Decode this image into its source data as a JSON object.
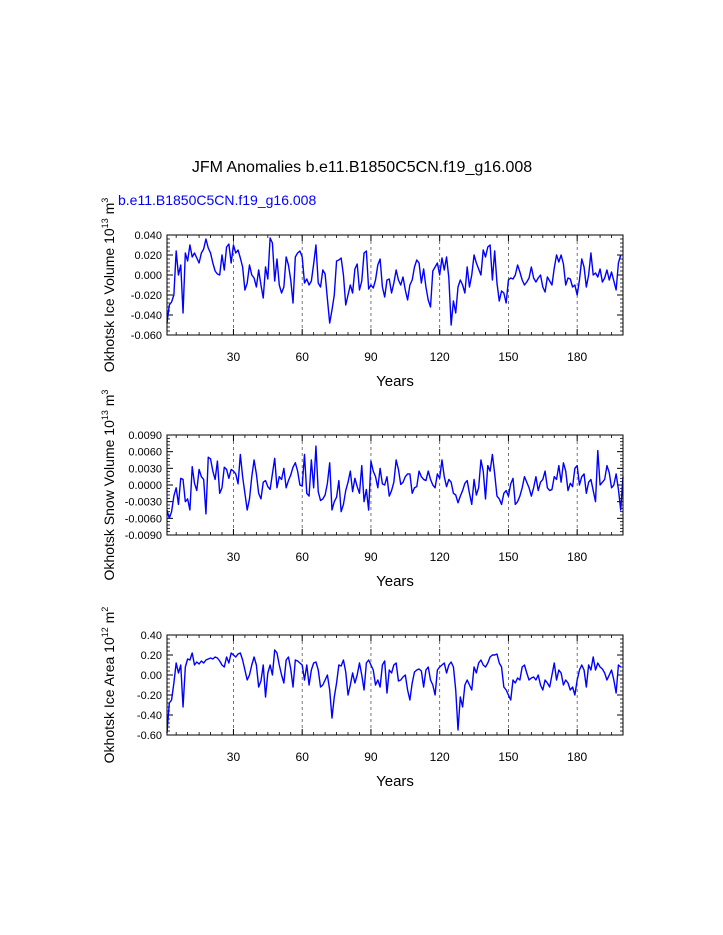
{
  "figure": {
    "title": "JFM Anomalies b.e11.B1850C5CN.f19_g16.008",
    "case_label": "b.e11.B1850C5CN.f19_g16.008",
    "case_color": "#0000ff",
    "line_color": "#0000ff"
  },
  "chart_data": [
    {
      "type": "line",
      "ylabel_main": "Okhotsk Ice Volume 10",
      "ylabel_sup1": "13",
      "ylabel_unit": " m",
      "ylabel_sup2": "3",
      "xlabel": "Years",
      "xlim": [
        1,
        200
      ],
      "ylim": [
        -0.06,
        0.04
      ],
      "yticks": [
        -0.06,
        -0.04,
        -0.02,
        0.0,
        0.02,
        0.04
      ],
      "ytick_labels": [
        "-0.060",
        "-0.040",
        "-0.020",
        "0.000",
        "0.020",
        "0.040"
      ],
      "xticks": [
        30,
        60,
        90,
        120,
        150,
        180
      ],
      "xtick_labels": [
        "30",
        "60",
        "90",
        "120",
        "150",
        "180"
      ],
      "vlines": [
        30,
        60,
        90,
        120,
        150,
        180
      ],
      "series": [
        {
          "name": "Okhotsk Ice Volume",
          "values": [
            -0.048,
            -0.03,
            -0.027,
            -0.02,
            0.024,
            0.0,
            0.01,
            -0.038,
            0.022,
            0.014,
            0.03,
            0.018,
            0.022,
            0.017,
            0.012,
            0.022,
            0.026,
            0.036,
            0.027,
            0.022,
            0.012,
            0.004,
            0.001,
            0.0,
            0.02,
            0.005,
            0.028,
            0.031,
            0.012,
            0.03,
            0.022,
            0.025,
            0.017,
            0.008,
            -0.015,
            -0.008,
            0.01,
            0.0,
            -0.003,
            -0.012,
            0.005,
            -0.01,
            -0.023,
            0.008,
            -0.004,
            0.037,
            0.032,
            -0.006,
            0.016,
            -0.01,
            -0.018,
            -0.012,
            0.018,
            0.01,
            -0.005,
            -0.028,
            0.018,
            0.022,
            0.024,
            0.018,
            -0.008,
            -0.004,
            -0.01,
            -0.006,
            0.011,
            0.03,
            -0.008,
            -0.012,
            0.005,
            0.001,
            -0.024,
            -0.048,
            -0.035,
            -0.02,
            0.014,
            0.015,
            0.017,
            0.0,
            -0.03,
            -0.02,
            -0.01,
            -0.018,
            0.006,
            0.011,
            -0.015,
            -0.006,
            0.022,
            0.024,
            -0.014,
            -0.01,
            -0.013,
            -0.005,
            0.01,
            0.016,
            -0.012,
            -0.022,
            -0.005,
            -0.004,
            -0.018,
            -0.008,
            0.005,
            -0.005,
            -0.01,
            -0.002,
            -0.015,
            -0.025,
            -0.01,
            -0.005,
            0.008,
            0.015,
            0.012,
            -0.008,
            0.006,
            -0.012,
            -0.025,
            -0.032,
            0.004,
            0.008,
            0.012,
            0.0,
            0.017,
            0.005,
            0.018,
            -0.003,
            -0.05,
            -0.026,
            -0.038,
            -0.012,
            -0.005,
            -0.01,
            -0.018,
            0.008,
            -0.012,
            0.0,
            0.02,
            0.012,
            0.006,
            0.0,
            0.025,
            0.018,
            0.028,
            0.03,
            -0.005,
            0.024,
            -0.008,
            -0.026,
            -0.016,
            -0.018,
            -0.028,
            -0.005,
            -0.003,
            -0.004,
            0.0,
            0.01,
            0.003,
            -0.005,
            -0.01,
            -0.007,
            -0.003,
            0.008,
            -0.003,
            -0.007,
            -0.003,
            0.0,
            -0.012,
            -0.017,
            -0.002,
            -0.006,
            -0.01,
            0.007,
            0.02,
            0.013,
            0.02,
            0.011,
            -0.01,
            -0.003,
            -0.004,
            -0.012,
            -0.01,
            -0.02,
            -0.005,
            0.016,
            0.008,
            -0.012,
            0.0,
            0.022,
            0.0,
            0.002,
            -0.002,
            0.006,
            -0.007,
            -0.003,
            0.005,
            -0.005,
            0.003,
            -0.006,
            -0.015,
            0.012,
            0.02
          ]
        }
      ]
    },
    {
      "type": "line",
      "ylabel_main": "Okhotsk Snow Volume 10",
      "ylabel_sup1": "13",
      "ylabel_unit": " m",
      "ylabel_sup2": "3",
      "xlabel": "Years",
      "xlim": [
        1,
        200
      ],
      "ylim": [
        -0.009,
        0.009
      ],
      "yticks": [
        -0.009,
        -0.006,
        -0.003,
        0.0,
        0.003,
        0.006,
        0.009
      ],
      "ytick_labels": [
        "-0.0090",
        "-0.0060",
        "-0.0030",
        "0.0000",
        "0.0030",
        "0.0060",
        "0.0090"
      ],
      "xticks": [
        30,
        60,
        90,
        120,
        150,
        180
      ],
      "xtick_labels": [
        "30",
        "60",
        "90",
        "120",
        "150",
        "180"
      ],
      "vlines": [
        30,
        60,
        90,
        120,
        150,
        180
      ],
      "series": [
        {
          "name": "Okhotsk Snow Volume",
          "values": [
            -0.0045,
            -0.006,
            -0.0048,
            -0.002,
            -0.0005,
            -0.0035,
            0.0012,
            0.001,
            -0.003,
            -0.0025,
            -0.0045,
            0.0033,
            0.0003,
            -0.001,
            0.0028,
            0.0015,
            0.001,
            -0.0052,
            0.005,
            0.0047,
            0.0025,
            0.001,
            0.0043,
            -0.0015,
            -0.0005,
            0.0032,
            0.0028,
            0.0012,
            0.0028,
            0.0025,
            0.002,
            0.0002,
            0.0055,
            0.0015,
            -0.0015,
            -0.0045,
            -0.0025,
            0.0015,
            0.0045,
            0.002,
            -0.0015,
            -0.0025,
            0.0005,
            0.0008,
            -0.0003,
            -0.0008,
            0.002,
            0.0048,
            -0.0005,
            0.0015,
            0.001,
            0.003,
            -0.0005,
            0.0008,
            0.0018,
            0.0032,
            0.004,
            0.0025,
            0.0,
            -0.0002,
            0.0055,
            -0.0015,
            -0.002,
            0.0045,
            -0.0005,
            0.007,
            -0.0012,
            -0.0028,
            -0.0025,
            -0.0018,
            0.0003,
            0.004,
            -0.0045,
            -0.003,
            -0.0022,
            0.0008,
            -0.0048,
            -0.0035,
            -0.001,
            0.0005,
            0.0025,
            -0.0012,
            0.0012,
            -0.0003,
            -0.0015,
            0.0035,
            -0.003,
            -0.0008,
            -0.0045,
            0.0043,
            0.0025,
            0.0015,
            -0.0005,
            0.003,
            0.0002,
            0.0,
            0.0015,
            -0.002,
            -0.001,
            0.0005,
            0.0045,
            0.0028,
            0.0001,
            0.0005,
            0.0015,
            0.002,
            0.002,
            -0.0015,
            -0.0005,
            -0.0003,
            0.0025,
            0.0015,
            0.001,
            0.0008,
            0.0025,
            0.001,
            0.0,
            -0.0005,
            0.002,
            0.0012,
            0.0045,
            0.0015,
            -0.0003,
            0.001,
            0.0005,
            -0.0015,
            -0.0018,
            -0.0032,
            -0.002,
            -0.001,
            0.0003,
            0.0008,
            -0.0015,
            -0.0035,
            0.001,
            -0.0018,
            -0.0005,
            0.0045,
            0.0025,
            -0.0025,
            0.0035,
            0.0025,
            0.0055,
            0.002,
            -0.002,
            -0.0025,
            -0.0035,
            -0.0015,
            -0.001,
            -0.002,
            0.0002,
            0.0012,
            -0.0035,
            -0.003,
            -0.002,
            -0.0005,
            0.0015,
            0.0005,
            -0.0005,
            -0.002,
            -0.0005,
            0.0015,
            -0.001,
            0.0005,
            0.001,
            0.0025,
            -0.0005,
            -0.001,
            -0.0008,
            0.0015,
            0.001,
            0.0035,
            0.0005,
            0.004,
            0.0025,
            -0.001,
            0.0003,
            -0.0003,
            0.003,
            0.0035,
            0.0,
            0.0015,
            0.002,
            -0.0015,
            0.0005,
            0.001,
            -0.001,
            -0.003,
            0.0062,
            0.0,
            0.0005,
            0.001,
            0.0035,
            0.0022,
            -0.0005,
            0.0,
            0.002,
            -0.0008,
            -0.0045,
            0.0015
          ]
        }
      ]
    },
    {
      "type": "line",
      "ylabel_main": "Okhotsk Ice Area 10",
      "ylabel_sup1": "12",
      "ylabel_unit": " m",
      "ylabel_sup2": "2",
      "xlabel": "Years",
      "xlim": [
        1,
        200
      ],
      "ylim": [
        -0.6,
        0.4
      ],
      "yticks": [
        -0.6,
        -0.4,
        -0.2,
        0.0,
        0.2,
        0.4
      ],
      "ytick_labels": [
        "-0.60",
        "-0.40",
        "-0.20",
        "0.00",
        "0.20",
        "0.40"
      ],
      "xticks": [
        30,
        60,
        90,
        120,
        150,
        180
      ],
      "xtick_labels": [
        "30",
        "60",
        "90",
        "120",
        "150",
        "180"
      ],
      "vlines": [
        30,
        60,
        90,
        120,
        150,
        180
      ],
      "series": [
        {
          "name": "Okhotsk Ice Area",
          "values": [
            -0.58,
            -0.28,
            -0.25,
            -0.08,
            0.12,
            0.02,
            0.1,
            -0.32,
            0.08,
            0.16,
            0.15,
            0.22,
            0.1,
            0.13,
            0.11,
            0.14,
            0.12,
            0.15,
            0.16,
            0.17,
            0.16,
            0.18,
            0.17,
            0.14,
            0.1,
            0.08,
            0.18,
            0.12,
            0.22,
            0.2,
            0.18,
            0.21,
            0.22,
            0.15,
            0.05,
            -0.05,
            0.0,
            0.1,
            0.18,
            0.1,
            -0.12,
            -0.06,
            0.1,
            -0.22,
            0.02,
            0.1,
            0.0,
            0.25,
            0.22,
            0.1,
            0.0,
            -0.08,
            0.15,
            0.18,
            0.06,
            -0.12,
            0.15,
            0.14,
            0.12,
            0.1,
            -0.05,
            0.1,
            -0.1,
            0.05,
            0.12,
            0.13,
            0.05,
            -0.12,
            -0.1,
            -0.05,
            0.0,
            -0.15,
            -0.43,
            -0.22,
            -0.08,
            0.1,
            0.09,
            0.15,
            0.03,
            -0.2,
            -0.1,
            0.02,
            -0.08,
            0.0,
            0.12,
            0.0,
            -0.15,
            0.12,
            0.15,
            0.1,
            0.05,
            -0.1,
            -0.05,
            -0.12,
            0.1,
            0.14,
            -0.18,
            0.05,
            0.02,
            0.1,
            0.12,
            -0.06,
            -0.05,
            -0.02,
            0.0,
            -0.15,
            -0.25,
            -0.08,
            0.03,
            0.05,
            0.06,
            0.04,
            -0.12,
            0.05,
            0.08,
            -0.05,
            -0.1,
            -0.2,
            0.05,
            0.08,
            0.1,
            0.12,
            0.02,
            0.1,
            0.13,
            0.08,
            -0.15,
            -0.55,
            -0.22,
            -0.32,
            -0.1,
            -0.05,
            -0.1,
            -0.15,
            0.08,
            0.02,
            0.12,
            0.15,
            0.1,
            0.08,
            0.12,
            0.18,
            0.2,
            0.2,
            0.21,
            0.12,
            0.08,
            -0.12,
            -0.15,
            -0.2,
            -0.25,
            -0.05,
            -0.08,
            -0.03,
            -0.05,
            0.08,
            0.1,
            0.02,
            -0.05,
            -0.03,
            -0.02,
            -0.05,
            0.0,
            -0.1,
            -0.15,
            -0.05,
            -0.08,
            -0.12,
            0.0,
            0.12,
            -0.05,
            0.05,
            0.02,
            -0.1,
            -0.05,
            -0.08,
            -0.15,
            -0.12,
            -0.2,
            -0.05,
            0.05,
            0.1,
            0.05,
            -0.12,
            0.1,
            0.05,
            0.18,
            0.05,
            0.12,
            0.08,
            0.06,
            0.02,
            -0.05,
            0.0,
            0.05,
            -0.05,
            -0.18,
            0.1,
            0.08
          ]
        }
      ]
    }
  ]
}
